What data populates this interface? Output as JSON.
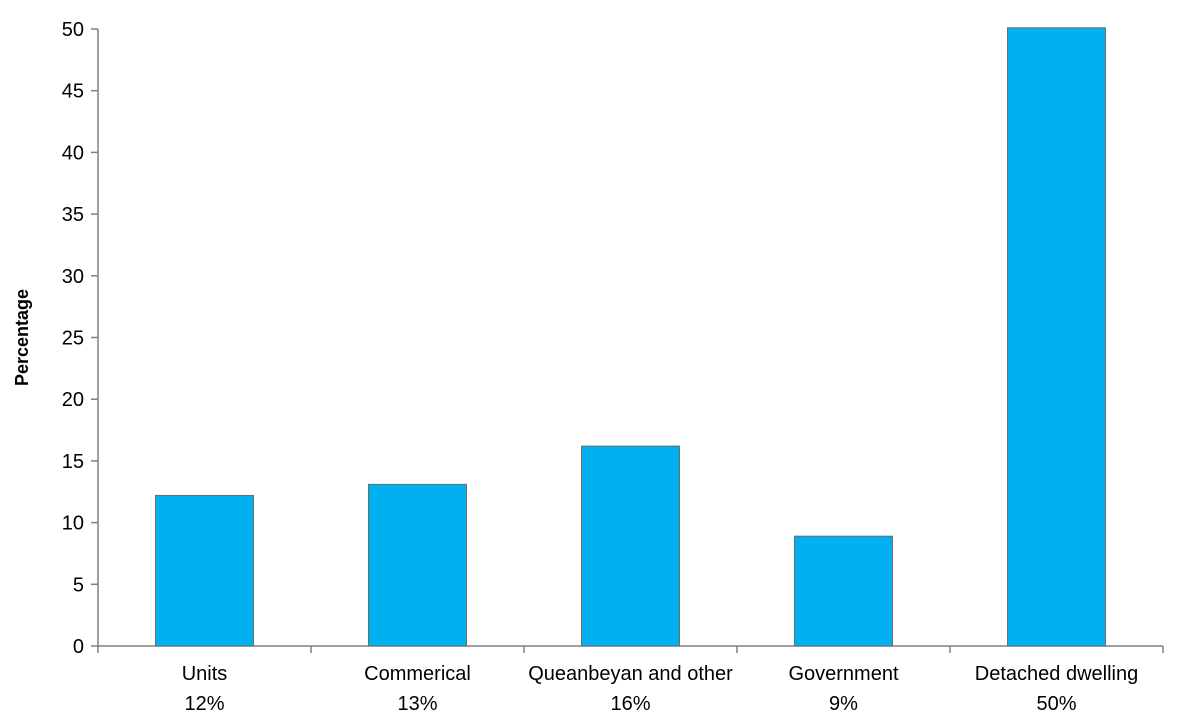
{
  "chart_data": {
    "type": "bar",
    "categories": [
      [
        "Units",
        "12%"
      ],
      [
        "Commerical",
        "13%"
      ],
      [
        "Queanbeyan and other",
        "16%"
      ],
      [
        "Government",
        "9%"
      ],
      [
        "Detached dwelling",
        "50%"
      ]
    ],
    "values": [
      12.2,
      13.1,
      16.2,
      8.9,
      50.1
    ],
    "ylabel": "Percentage",
    "ylim": [
      0,
      50
    ],
    "yticks": [
      0,
      5,
      10,
      15,
      20,
      25,
      30,
      35,
      40,
      45,
      50
    ],
    "grid": false,
    "bar_color": "#00B0F0",
    "bar_edge_color": "#6d6d6d"
  }
}
